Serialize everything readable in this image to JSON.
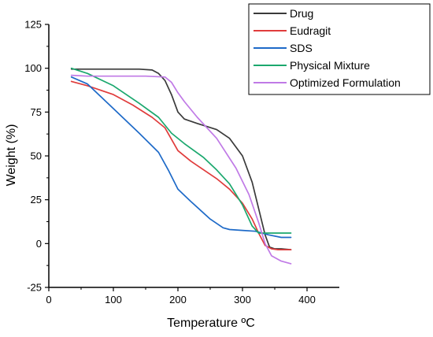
{
  "chart_data": {
    "type": "line",
    "xlabel": "Temperature ºC",
    "ylabel": "Weight (%)",
    "xlim": [
      0,
      450
    ],
    "ylim": [
      -25,
      125
    ],
    "xticks": [
      0,
      100,
      200,
      300,
      400
    ],
    "yticks": [
      -25,
      0,
      25,
      50,
      75,
      100,
      125
    ],
    "xtick_labels": [
      "0",
      "100",
      "200",
      "300",
      "400"
    ],
    "ytick_labels": [
      "-25",
      "0",
      "25",
      "50",
      "75",
      "100",
      "125"
    ],
    "grid": false,
    "legend_position": "top-right",
    "series": [
      {
        "name": "Drug",
        "color": "#3a3a3a",
        "x": [
          35,
          60,
          100,
          140,
          160,
          170,
          180,
          190,
          200,
          210,
          230,
          260,
          280,
          300,
          315,
          325,
          335,
          342,
          350,
          360,
          375
        ],
        "y": [
          99.5,
          99.5,
          99.5,
          99.5,
          99,
          97,
          93,
          85,
          75,
          71,
          68.5,
          65,
          60,
          50,
          35,
          20,
          5,
          -2,
          -3,
          -3,
          -3.5
        ]
      },
      {
        "name": "Eudragit",
        "color": "#e03c3c",
        "x": [
          35,
          60,
          100,
          130,
          160,
          180,
          200,
          220,
          240,
          260,
          280,
          300,
          315,
          325,
          335,
          345,
          355,
          375
        ],
        "y": [
          92.5,
          90,
          85,
          79,
          72,
          66,
          53,
          47,
          42,
          37,
          31,
          23,
          14,
          6,
          -1,
          -3,
          -3.5,
          -3.5
        ]
      },
      {
        "name": "SDS",
        "color": "#1e6ac8",
        "x": [
          35,
          60,
          100,
          140,
          170,
          185,
          200,
          220,
          250,
          270,
          280,
          300,
          320,
          340,
          360,
          375
        ],
        "y": [
          95,
          91,
          77,
          63,
          52,
          42,
          31,
          24,
          14,
          9,
          8,
          7.5,
          7,
          5,
          3.5,
          3.5
        ]
      },
      {
        "name": "Physical Mixture",
        "color": "#1ba86e",
        "x": [
          35,
          60,
          100,
          140,
          170,
          190,
          210,
          240,
          260,
          280,
          300,
          315,
          325,
          335,
          345,
          360,
          375
        ],
        "y": [
          100,
          97,
          90,
          80,
          72,
          63,
          57,
          49,
          42,
          34,
          22,
          10,
          6,
          6,
          6,
          6,
          6
        ]
      },
      {
        "name": "Optimized Formulation",
        "color": "#c07ae6",
        "x": [
          35,
          60,
          100,
          150,
          180,
          190,
          200,
          210,
          230,
          260,
          290,
          310,
          325,
          335,
          345,
          360,
          375
        ],
        "y": [
          96,
          95.5,
          95.5,
          95.5,
          95,
          92,
          86,
          81,
          72,
          60,
          43,
          28,
          12,
          0,
          -7,
          -10,
          -11.5
        ]
      }
    ]
  }
}
